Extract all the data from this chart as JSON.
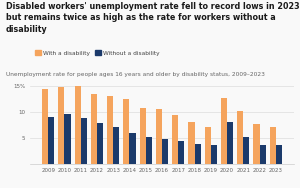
{
  "title": "Disabled workers' unemployment rate fell to record lows in 2023\nbut remains twice as high as the rate for workers without a\ndisability",
  "subtitle": "Unemployment rate for people ages 16 years and older by disability status, 2009–2023",
  "legend_labels": [
    "With a disability",
    "Without a disability"
  ],
  "years": [
    2009,
    2010,
    2011,
    2012,
    2013,
    2014,
    2015,
    2016,
    2017,
    2018,
    2019,
    2020,
    2021,
    2022,
    2023
  ],
  "with_disability": [
    14.5,
    14.8,
    15.0,
    13.4,
    13.1,
    12.5,
    10.7,
    10.6,
    9.4,
    8.0,
    7.1,
    12.7,
    10.1,
    7.6,
    7.1
  ],
  "without_disability": [
    9.1,
    9.6,
    8.8,
    7.9,
    7.0,
    5.9,
    5.2,
    4.8,
    4.3,
    3.7,
    3.5,
    8.0,
    5.2,
    3.5,
    3.5
  ],
  "color_disability": "#F5A45D",
  "color_no_disability": "#1B3A6B",
  "ylim": [
    0,
    16
  ],
  "ytick_vals": [
    5,
    10,
    15
  ],
  "ytick_labels": [
    "5",
    "10",
    "15%"
  ],
  "bar_width": 0.38,
  "background_color": "#f9f9f9",
  "title_fontsize": 5.8,
  "subtitle_fontsize": 4.2,
  "legend_fontsize": 4.2,
  "tick_fontsize": 4.0
}
